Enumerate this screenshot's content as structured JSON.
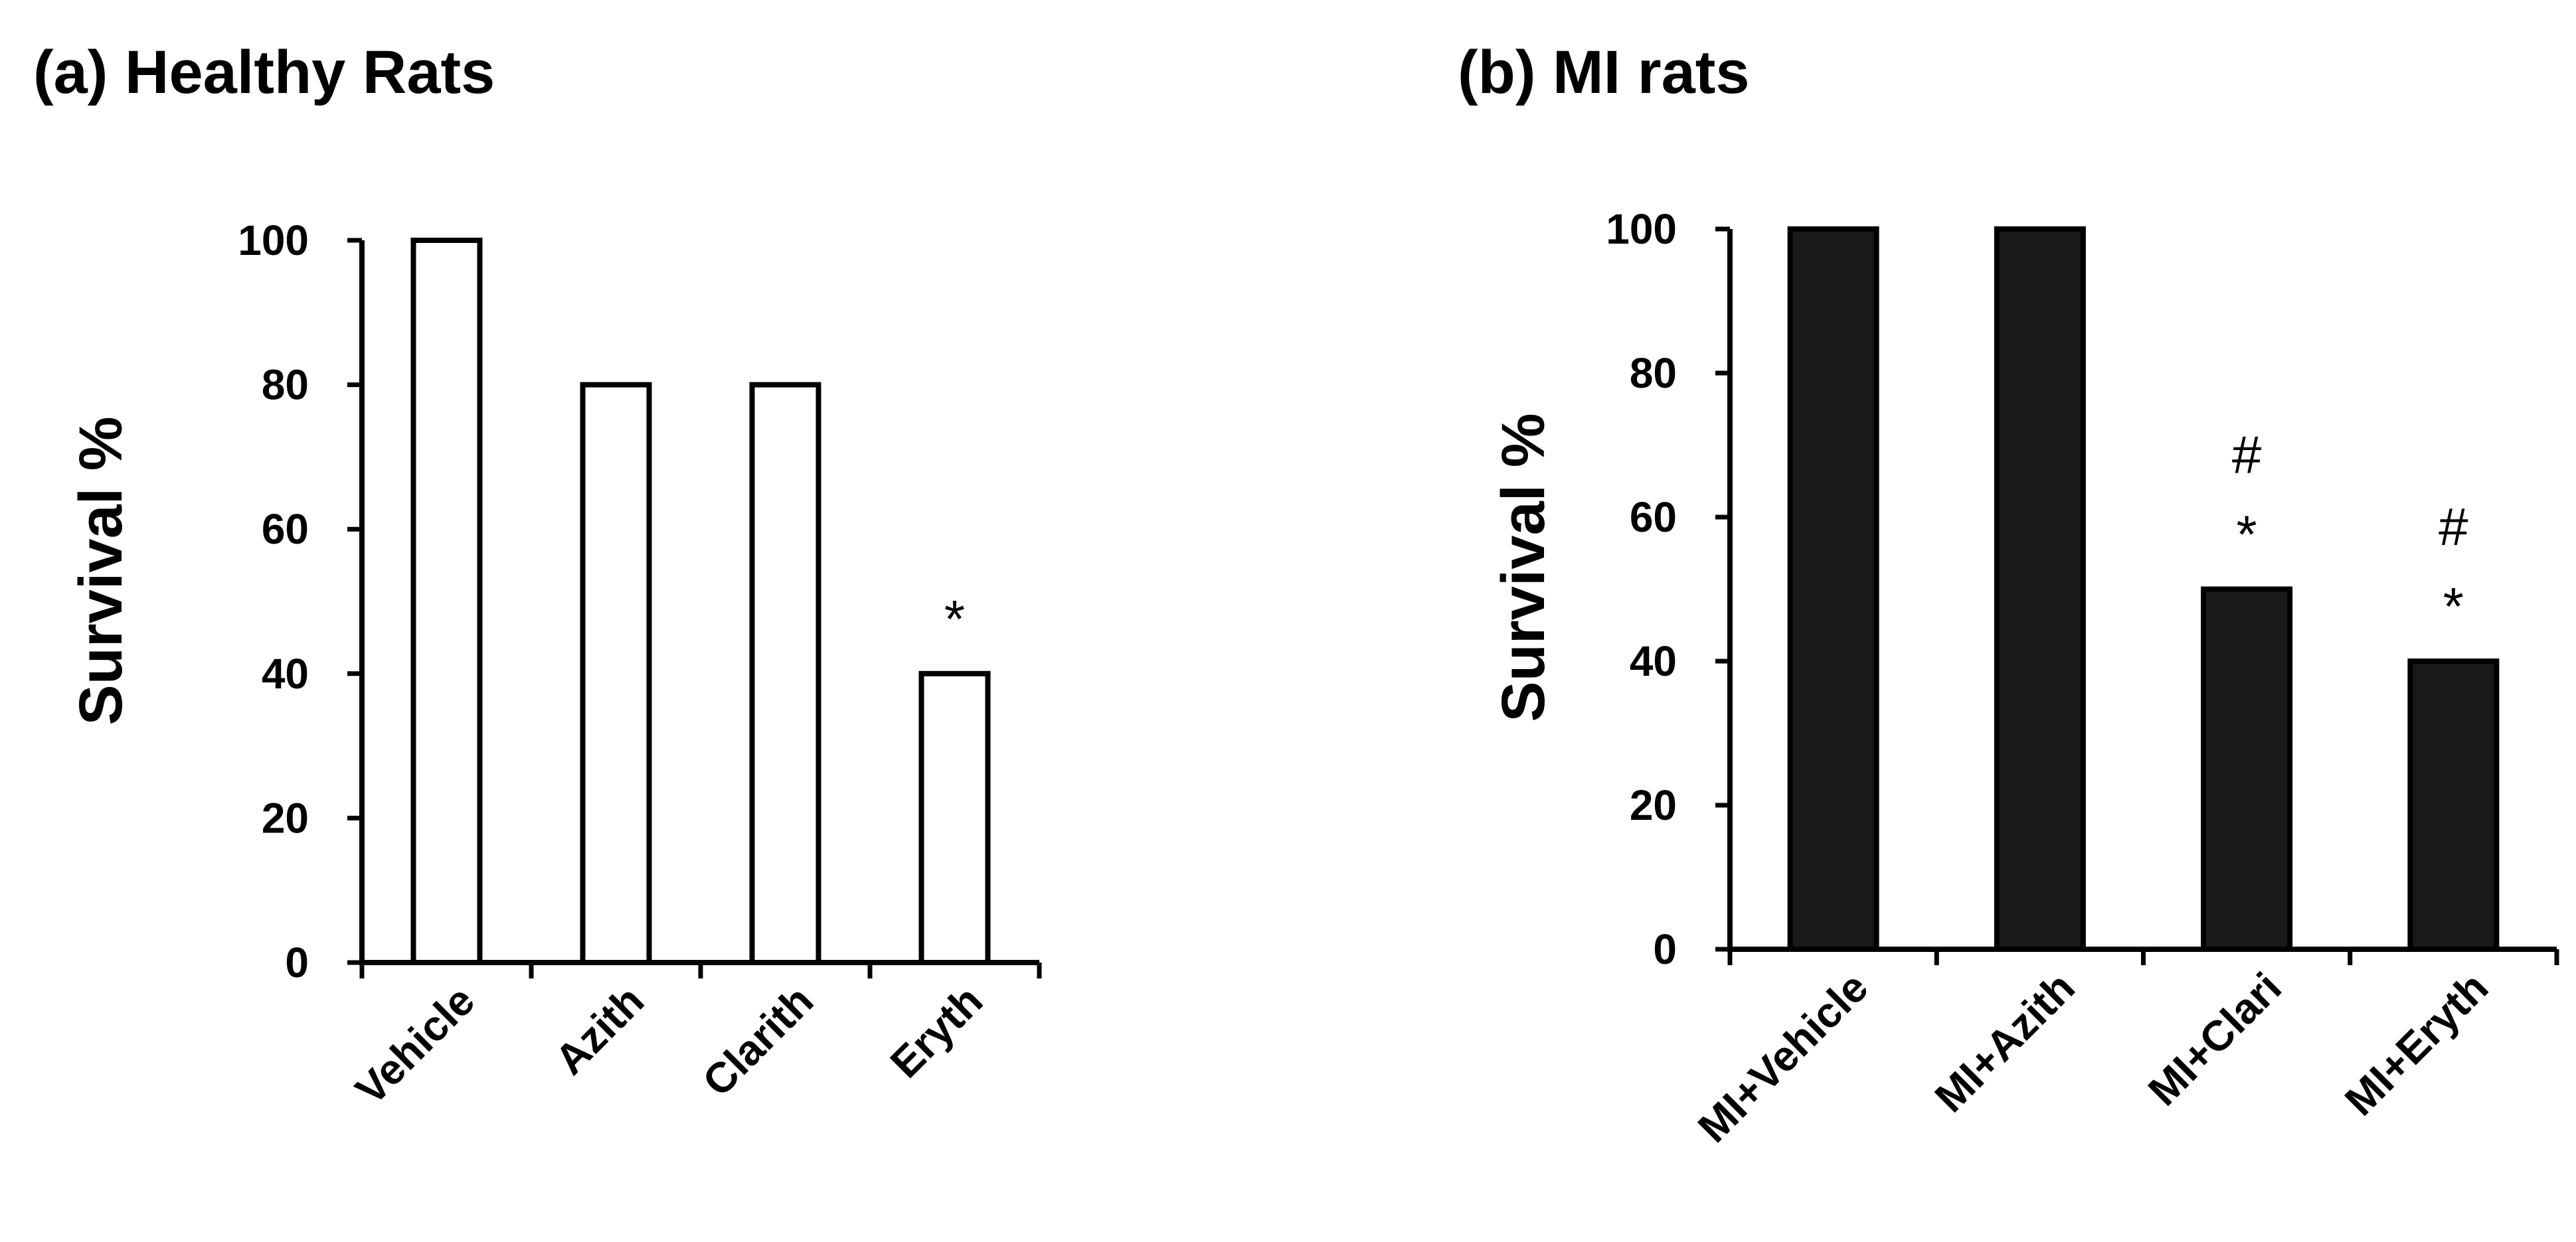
{
  "panels": [
    {
      "title": "(a) Healthy Rats",
      "ylabel": "Survival  %"
    },
    {
      "title": "(b) MI rats",
      "ylabel": "Survival  %"
    }
  ],
  "chart_data": [
    {
      "type": "bar",
      "title": "(a) Healthy Rats",
      "xlabel": "",
      "ylabel": "Survival  %",
      "ylim": [
        0,
        100
      ],
      "yticks": [
        0,
        20,
        40,
        60,
        80,
        100
      ],
      "categories": [
        "Vehicle",
        "Azith",
        "Clarith",
        "Eryth"
      ],
      "values": [
        100,
        80,
        80,
        40
      ],
      "bar_color": "#ffffff",
      "edge_color": "#000000",
      "annotations": [
        {
          "category": "Eryth",
          "marks": [
            "*"
          ]
        }
      ]
    },
    {
      "type": "bar",
      "title": "(b) MI rats",
      "xlabel": "",
      "ylabel": "Survival  %",
      "ylim": [
        0,
        100
      ],
      "yticks": [
        0,
        20,
        40,
        60,
        80,
        100
      ],
      "categories": [
        "MI+Vehicle",
        "MI+Azith",
        "MI+Clari",
        "MI+Eryth"
      ],
      "values": [
        100,
        100,
        50,
        40
      ],
      "bar_color": "#1a1a1a",
      "edge_color": "#000000",
      "annotations": [
        {
          "category": "MI+Clari",
          "marks": [
            "#",
            "*"
          ]
        },
        {
          "category": "MI+Eryth",
          "marks": [
            "#",
            "*"
          ]
        }
      ]
    }
  ]
}
